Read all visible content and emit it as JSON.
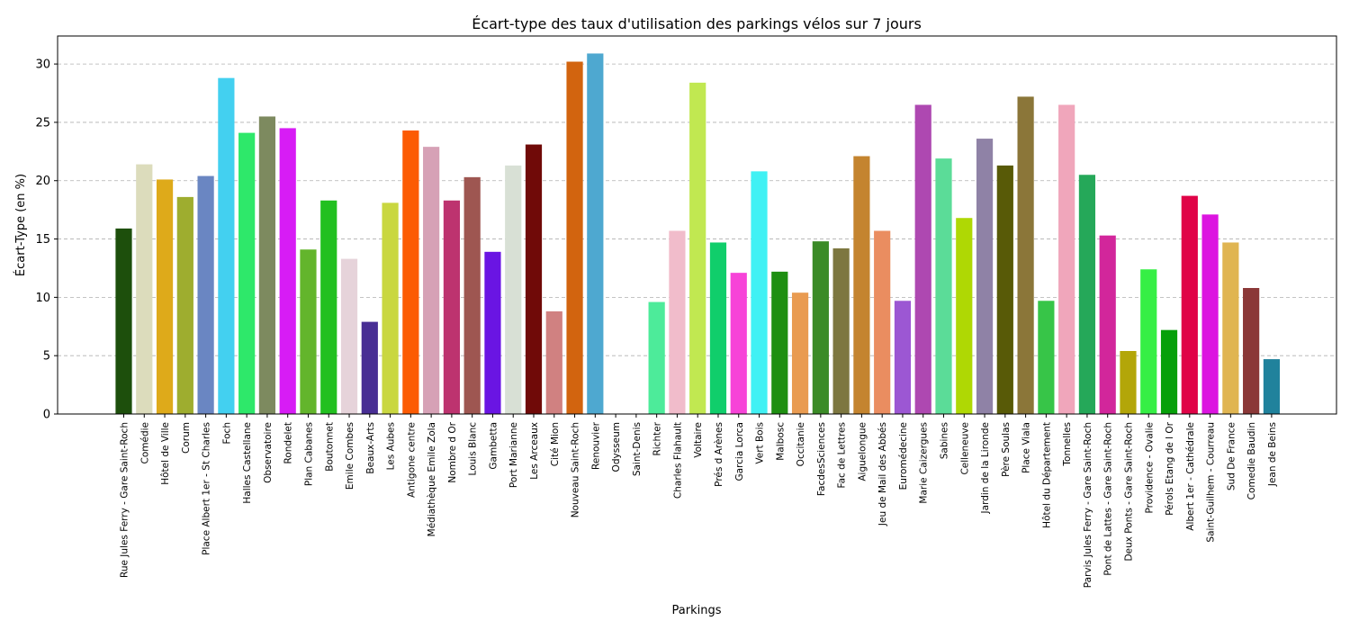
{
  "chart_data": {
    "type": "bar",
    "title": "Écart-type des taux d'utilisation des parkings vélos sur 7 jours",
    "xlabel": "Parkings",
    "ylabel": "Écart-Type (en %)",
    "ylim": [
      0,
      32.4
    ],
    "yticks": [
      "0",
      "5",
      "10",
      "15",
      "20",
      "25",
      "30"
    ],
    "grid": "y-dashed",
    "categories": [
      "Rue Jules Ferry - Gare Saint-Roch",
      "Comédie",
      "Hôtel de Ville",
      "Corum",
      "Place Albert 1er - St Charles",
      "Foch",
      "Halles Castellane",
      "Observatoire",
      "Rondelet",
      "Plan Cabanes",
      "Boutonnet",
      "Emile Combes",
      "Beaux-Arts",
      "Les Aubes",
      "Antigone centre",
      "Médiathèque Emile Zola",
      "Nombre d Or",
      "Louis Blanc",
      "Gambetta",
      "Port Marianne",
      "Les Arceaux",
      "Cité Mion",
      "Nouveau Saint-Roch",
      "Renouvier",
      "Odysseum",
      "Saint-Denis",
      "Richter",
      "Charles Flahault",
      "Voltaire",
      "Prés d Arènes",
      "Garcia Lorca",
      "Vert Bois",
      "Malbosc",
      "Occitanie",
      "FacdesSciences",
      "Fac de Lettres",
      "Aiguelongue",
      "Jeu de Mail des Abbés",
      "Euromédecine",
      "Marie Caizergues",
      "Sabines",
      "Celleneuve",
      "Jardin de la Lironde",
      "Père Soulas",
      "Place Viala",
      "Hôtel du Département",
      "Tonnelles",
      "Parvis Jules Ferry - Gare Saint-Roch",
      "Pont de Lattes - Gare Saint-Roch",
      "Deux Ponts - Gare Saint-Roch",
      "Providence - Ovalie",
      "Pérols Etang de l Or",
      "Albert 1er - Cathédrale",
      "Saint-Guilhem - Courreau",
      "Sud De France",
      "Comedie Baudin",
      "Jean de Beins"
    ],
    "values": [
      15.9,
      21.4,
      20.1,
      18.6,
      20.4,
      28.8,
      24.1,
      25.5,
      24.5,
      14.1,
      18.3,
      13.3,
      7.9,
      18.1,
      24.3,
      22.9,
      18.3,
      20.3,
      13.9,
      21.3,
      23.1,
      8.8,
      30.2,
      30.9,
      0,
      0,
      9.6,
      15.7,
      28.4,
      14.7,
      12.1,
      20.8,
      12.2,
      10.4,
      14.8,
      14.2,
      22.1,
      15.7,
      9.7,
      26.5,
      21.9,
      16.8,
      23.6,
      21.3,
      27.2,
      9.7,
      26.5,
      20.5,
      15.3,
      5.4,
      12.4,
      7.2,
      18.7,
      17.1,
      14.7,
      10.8,
      4.7
    ],
    "colors": [
      "#1d4f0c",
      "#dcdcbc",
      "#deaa1a",
      "#9ead2f",
      "#6a86c2",
      "#43d0f0",
      "#2ee86a",
      "#7d8a5f",
      "#d71cf5",
      "#63b52c",
      "#22c020",
      "#e6d3da",
      "#482e94",
      "#c9d740",
      "#fc5b03",
      "#d6a1b6",
      "#bd336f",
      "#9e5651",
      "#6a15e3",
      "#d8e0d5",
      "#700a08",
      "#d08181",
      "#d2640f",
      "#4ea8d0",
      "#ffffff",
      "#ffffff",
      "#4deb9a",
      "#f1bccb",
      "#c1e851",
      "#10ce6b",
      "#f743d8",
      "#40f1f4",
      "#1e8f11",
      "#e99b51",
      "#3b8b27",
      "#7d7740",
      "#c4842f",
      "#ea8d60",
      "#9c57d3",
      "#ae48b1",
      "#5bdc98",
      "#afd804",
      "#8f82a6",
      "#585a07",
      "#8b7639",
      "#37c548",
      "#f0a6bb",
      "#25a859",
      "#d2269b",
      "#b3a609",
      "#36ef45",
      "#06a00a",
      "#e00347",
      "#dc14e0",
      "#e0b551",
      "#8b3838",
      "#20829c"
    ]
  }
}
